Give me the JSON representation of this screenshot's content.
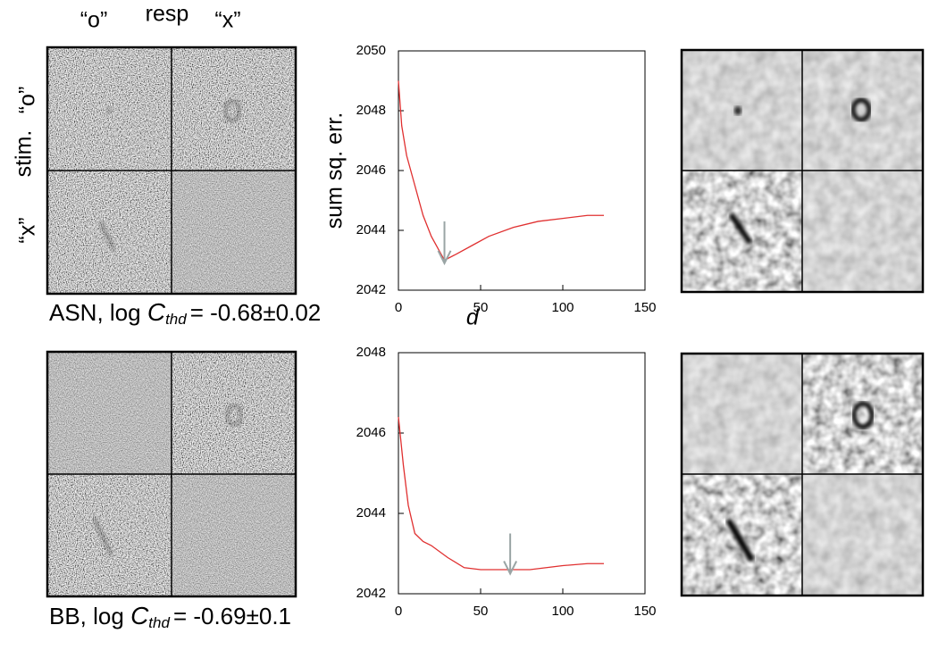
{
  "labels": {
    "col_o": "“o”",
    "resp": "resp",
    "col_x": "“x”",
    "row_x": "“x”",
    "stim": "stim.",
    "row_o": "“o”"
  },
  "captions": [
    {
      "prefix": "ASN, log",
      "var": "C",
      "sub": "thd",
      "value": "= -0.68±0.02"
    },
    {
      "prefix": "BB, log",
      "var": "C",
      "sub": "thd",
      "value": "= -0.69±0.1"
    }
  ],
  "chart_data": [
    {
      "type": "line",
      "ylabel": "sum sq. err.",
      "xlabel": "d",
      "x": [
        0,
        2,
        5,
        10,
        15,
        20,
        25,
        28,
        35,
        45,
        55,
        70,
        85,
        100,
        115,
        125
      ],
      "values": [
        2049,
        2047.5,
        2046.5,
        2045.5,
        2044.5,
        2043.8,
        2043.3,
        2043.0,
        2043.2,
        2043.5,
        2043.8,
        2044.1,
        2044.3,
        2044.4,
        2044.5,
        2044.5
      ],
      "color": "#e03030",
      "xlim": [
        0,
        150
      ],
      "xticks": [
        0,
        50,
        100,
        150
      ],
      "ylim": [
        2042,
        2050
      ],
      "yticks": [
        2042,
        2044,
        2046,
        2048,
        2050
      ],
      "arrow": {
        "x": 28,
        "y_start": 2044.3,
        "y_end": 2042.9,
        "color": "#9aa5a5"
      }
    },
    {
      "type": "line",
      "x": [
        0,
        3,
        6,
        10,
        15,
        20,
        30,
        40,
        50,
        60,
        70,
        80,
        90,
        100,
        115,
        125
      ],
      "values": [
        2046.4,
        2045.2,
        2044.2,
        2043.5,
        2043.3,
        2043.2,
        2042.9,
        2042.65,
        2042.6,
        2042.6,
        2042.6,
        2042.6,
        2042.65,
        2042.7,
        2042.75,
        2042.75
      ],
      "color": "#e03030",
      "xlim": [
        0,
        150
      ],
      "xticks": [
        0,
        50,
        100,
        150
      ],
      "ylim": [
        2042,
        2048
      ],
      "yticks": [
        2042,
        2044,
        2046,
        2048
      ],
      "arrow": {
        "x": 68,
        "y_start": 2043.5,
        "y_end": 2042.5,
        "color": "#9aa5a5"
      }
    }
  ]
}
